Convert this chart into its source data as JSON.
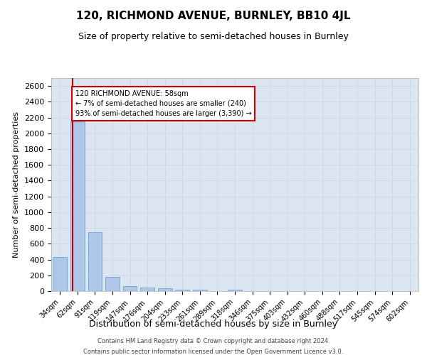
{
  "title": "120, RICHMOND AVENUE, BURNLEY, BB10 4JL",
  "subtitle": "Size of property relative to semi-detached houses in Burnley",
  "xlabel": "Distribution of semi-detached houses by size in Burnley",
  "ylabel": "Number of semi-detached properties",
  "categories": [
    "34sqm",
    "62sqm",
    "91sqm",
    "119sqm",
    "147sqm",
    "176sqm",
    "204sqm",
    "233sqm",
    "261sqm",
    "289sqm",
    "318sqm",
    "346sqm",
    "375sqm",
    "403sqm",
    "432sqm",
    "460sqm",
    "488sqm",
    "517sqm",
    "545sqm",
    "574sqm",
    "602sqm"
  ],
  "values": [
    430,
    2150,
    750,
    180,
    62,
    42,
    32,
    22,
    22,
    0,
    20,
    0,
    0,
    0,
    0,
    0,
    0,
    0,
    0,
    0,
    0
  ],
  "bar_color": "#aec6e8",
  "bar_edge_color": "#5b9bd5",
  "annotation_text": "120 RICHMOND AVENUE: 58sqm\n← 7% of semi-detached houses are smaller (240)\n93% of semi-detached houses are larger (3,390) →",
  "annotation_box_color": "#ffffff",
  "annotation_box_edge": "#cc0000",
  "redline_color": "#cc0000",
  "red_line_x": 0.72,
  "ylim": [
    0,
    2700
  ],
  "yticks": [
    0,
    200,
    400,
    600,
    800,
    1000,
    1200,
    1400,
    1600,
    1800,
    2000,
    2200,
    2400,
    2600
  ],
  "grid_color": "#c8d4e3",
  "background_color": "#dce6f1",
  "footer_line1": "Contains HM Land Registry data © Crown copyright and database right 2024.",
  "footer_line2": "Contains public sector information licensed under the Open Government Licence v3.0."
}
